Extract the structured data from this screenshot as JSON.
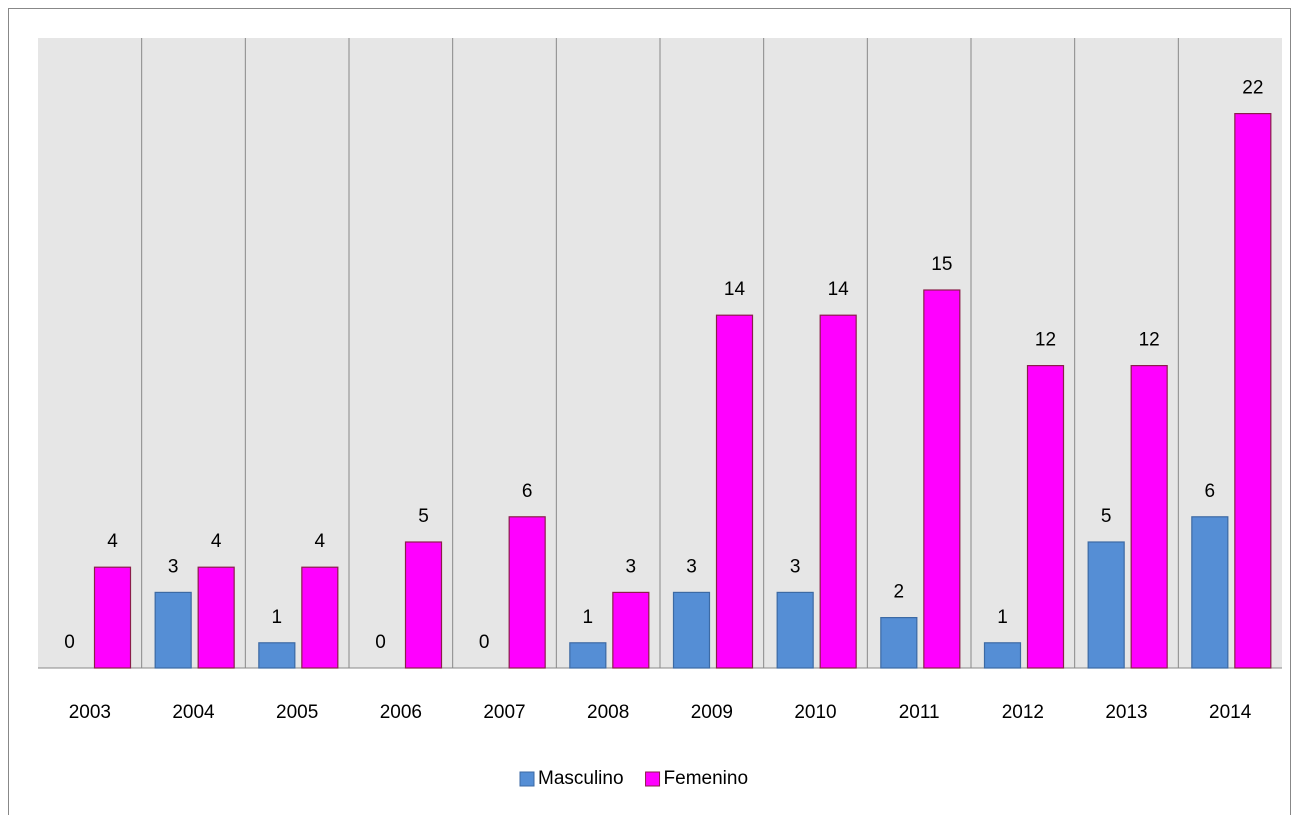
{
  "chart_data": {
    "type": "bar",
    "categories": [
      "2003",
      "2004",
      "2005",
      "2006",
      "2007",
      "2008",
      "2009",
      "2010",
      "2011",
      "2012",
      "2013",
      "2014"
    ],
    "series": [
      {
        "name": "Masculino",
        "color": "#558ed5",
        "values": [
          0,
          3,
          1,
          0,
          0,
          1,
          3,
          3,
          2,
          1,
          5,
          6
        ]
      },
      {
        "name": "Femenino",
        "color": "#ff00ff",
        "values": [
          4,
          4,
          4,
          5,
          6,
          3,
          14,
          14,
          15,
          12,
          12,
          22
        ]
      }
    ],
    "ylim": [
      0,
      25
    ],
    "legend": "bottom"
  }
}
